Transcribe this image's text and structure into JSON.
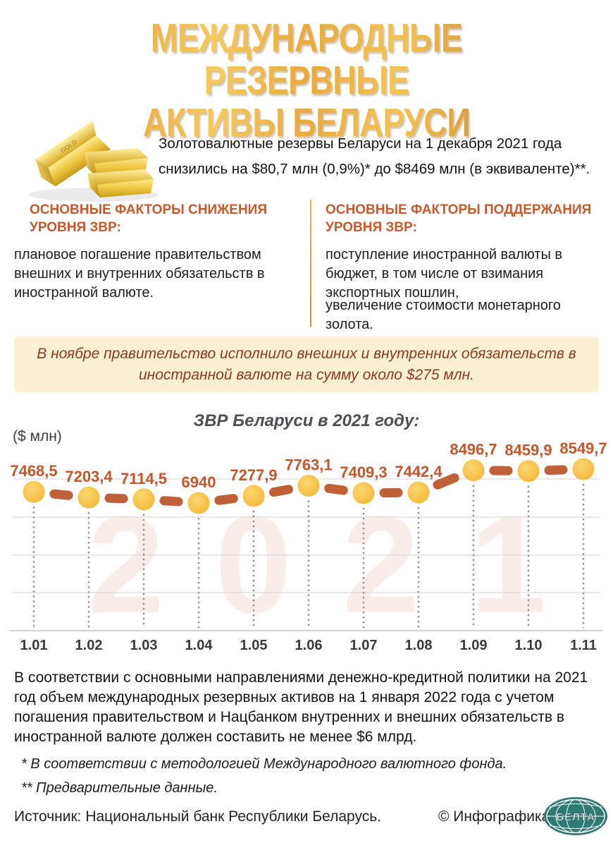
{
  "title": {
    "line1": "МЕЖДУНАРОДНЫЕ РЕЗЕРВНЫЕ",
    "line2": "АКТИВЫ БЕЛАРУСИ"
  },
  "intro": {
    "text": "Золотовалютные резервы Беларуси на 1 декабря 2021 года снизились на $80,7 млн (0,9%)* до $8469 млн (в эквиваленте)**."
  },
  "factors": {
    "decrease": {
      "heading": "ОСНОВНЫЕ ФАКТОРЫ СНИЖЕНИЯ УРОВНЯ ЗВР:",
      "body": "плановое погашение правительством внешних и внутренних обязательств в иностранной валюте."
    },
    "support": {
      "heading": "ОСНОВНЫЕ ФАКТОРЫ ПОДДЕРЖАНИЯ УРОВНЯ ЗВР:",
      "body1": "поступление иностранной валюты в бюджет, в том числе от взимания экспортных пошлин,",
      "body2": "увеличение стоимости монетарного золота."
    }
  },
  "callout": {
    "text": "В ноябре правительство исполнило внешних и внутренних обязательств в иностранной валюте на сумму около $275 млн."
  },
  "chart_data": {
    "type": "line",
    "title": "ЗВР Беларуси в 2021 году:",
    "ylabel": "($ млн)",
    "xlabel": "",
    "categories": [
      "1.01",
      "1.02",
      "1.03",
      "1.04",
      "1.05",
      "1.06",
      "1.07",
      "1.08",
      "1.09",
      "1.10",
      "1.11"
    ],
    "values": [
      7468.5,
      7203.4,
      7114.5,
      6940,
      7277.9,
      7763.1,
      7409.3,
      7442.4,
      8496.7,
      8459.9,
      8549.7
    ],
    "value_labels": [
      "7468,5",
      "7203,4",
      "7114,5",
      "6940",
      "7277,9",
      "7763,1",
      "7409,3",
      "7442,4",
      "8496,7",
      "8459,9",
      "8549,7"
    ],
    "ylim": [
      6940,
      8549.7
    ],
    "grid": true,
    "legend": false,
    "watermark": "2021",
    "colors": {
      "point": "#F8C24A",
      "point_light": "#FBD772",
      "segment": "#BF6038",
      "value_label": "#C2572C",
      "x_label": "#3A3A3A",
      "gridline": "#DCDCDC",
      "axis": "#C6C6C6",
      "dotted": "#8F8F8F",
      "watermark": "#F9EDEA"
    }
  },
  "policy_note": {
    "text": "В соответствии с основными направлениями денежно-кредитной политики на 2021 год объем международных резервных активов на 1 января 2022 года с учетом погашения правительством и Нацбанком внутренних и внешних обязательств в иностранной валюте должен составить не менее $6 млрд."
  },
  "footnotes": {
    "line1": "* В соответствии с методологией Международного валютного фонда.",
    "line2": "** Предварительные данные."
  },
  "footer": {
    "source": "Источник: Национальный банк Республики Беларусь.",
    "credit": "© Инфографика",
    "logo_text": "БЕЛТА"
  },
  "colors": {
    "accent_orange": "#C65A2E",
    "line_brown": "#BF6038",
    "point_yellow": "#F8C24A",
    "callout_bg": "#FBF0D2",
    "callout_text": "#8A3A22",
    "title_gold_dark": "#BE8449",
    "title_gold_light": "#F6CA5B",
    "logo_teal": "#2F7B73"
  }
}
